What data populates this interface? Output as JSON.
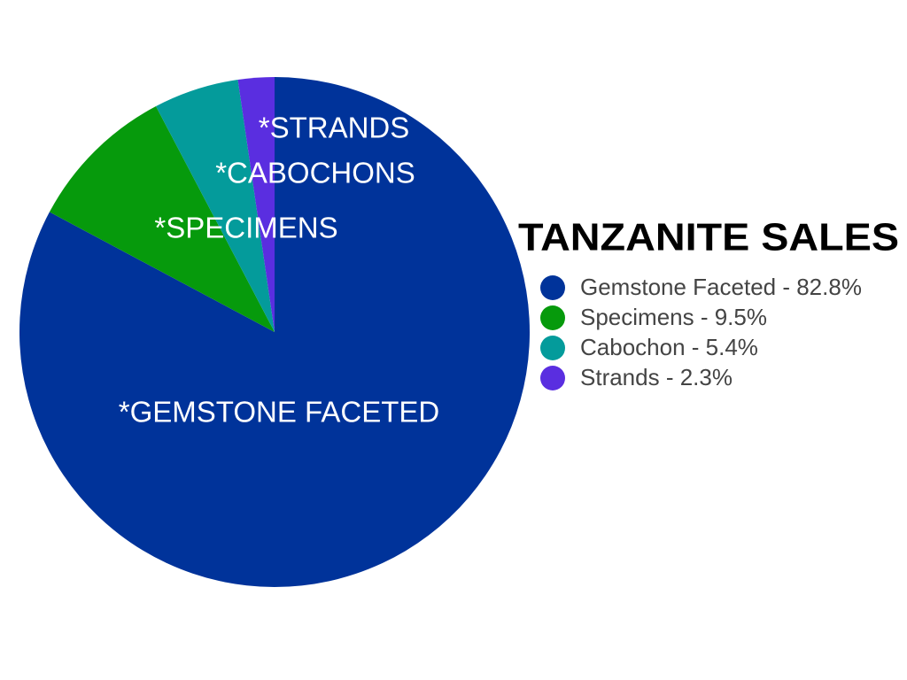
{
  "chart_data": {
    "type": "pie",
    "title": "TANZANITE SALES",
    "categories": [
      "*GEMSTONE FACETED",
      "*SPECIMENS",
      "*CABOCHONS",
      "*STRANDS"
    ],
    "values": [
      82.8,
      9.5,
      5.4,
      2.3
    ],
    "value_labels": [
      "Gemstone Faceted - 82.8%",
      "Specimens - 9.5%",
      "Cabochon - 5.4%",
      "Strands - 2.3%"
    ],
    "colors": [
      "#00339a",
      "#069a0c",
      "#049b9b",
      "#5a2ee0"
    ]
  }
}
